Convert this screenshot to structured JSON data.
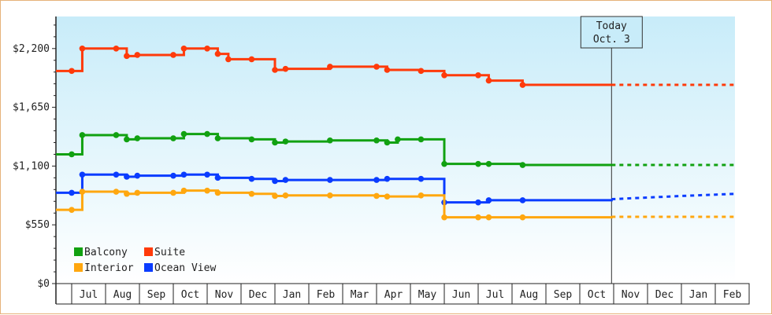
{
  "colors": {
    "suite": "#ff3a0a",
    "balcony": "#11a111",
    "ocean_view": "#0a3cff",
    "interior": "#ffa70f",
    "plot_bg_top": "#c8ecf9",
    "plot_bg_bottom": "#ffffff",
    "frame": "#e6b27a"
  },
  "today": {
    "line1": "Today",
    "line2": "Oct. 3",
    "x": "Oct 3"
  },
  "chart_data": {
    "type": "line",
    "title": "",
    "xlabel": "",
    "ylabel": "",
    "ylim": [
      0,
      2500
    ],
    "y_ticks": [
      0,
      550,
      1100,
      1650,
      2200
    ],
    "y_tick_labels": [
      "$0",
      "$550",
      "$1,100",
      "$1,650",
      "$2,200"
    ],
    "x_range": [
      "Jun",
      "Feb"
    ],
    "months": [
      "Jul",
      "Aug",
      "Sep",
      "Oct",
      "Nov",
      "Dec",
      "Jan",
      "Feb",
      "Mar",
      "Apr",
      "May",
      "Jun",
      "Jul",
      "Aug",
      "Sep",
      "Oct",
      "Nov",
      "Dec",
      "Jan",
      "Feb"
    ],
    "grid": false,
    "legend_position": "bottom-left",
    "legend": [
      {
        "key": "balcony",
        "label": "Balcony"
      },
      {
        "key": "suite",
        "label": "Suite"
      },
      {
        "key": "interior",
        "label": "Interior"
      },
      {
        "key": "ocean_view",
        "label": "Ocean View"
      }
    ],
    "series": [
      {
        "key": "suite",
        "name": "Suite",
        "step": true,
        "points": [
          [
            "Jun 0",
            1990
          ],
          [
            "Jul 0",
            1990
          ],
          [
            "Jul 1",
            2200
          ],
          [
            "Aug 1",
            2200
          ],
          [
            "Aug 2",
            2130
          ],
          [
            "Aug 3",
            2140
          ],
          [
            "Oct 0",
            2140
          ],
          [
            "Oct 1",
            2200
          ],
          [
            "Nov 0",
            2200
          ],
          [
            "Nov 1",
            2150
          ],
          [
            "Nov 2",
            2100
          ],
          [
            "Dec 1",
            2100
          ],
          [
            "Jan 0",
            2000
          ],
          [
            "Jan 1",
            2010
          ],
          [
            "Feb 2",
            2030
          ],
          [
            "Apr 0",
            2030
          ],
          [
            "Apr 1",
            2000
          ],
          [
            "May 1",
            1990
          ],
          [
            "Jun 0",
            1950
          ],
          [
            "Jul 0",
            1950
          ],
          [
            "Jul 1",
            1900
          ],
          [
            "Aug 1",
            1860
          ],
          [
            "Oct 3",
            1860
          ]
        ],
        "forecast": [
          [
            "Oct 3",
            1860
          ],
          [
            "Mar 0",
            1860
          ]
        ]
      },
      {
        "key": "balcony",
        "name": "Balcony",
        "step": true,
        "points": [
          [
            "Jun 0",
            1210
          ],
          [
            "Jul 0",
            1210
          ],
          [
            "Jul 1",
            1390
          ],
          [
            "Aug 1",
            1390
          ],
          [
            "Aug 2",
            1350
          ],
          [
            "Aug 3",
            1360
          ],
          [
            "Oct 0",
            1360
          ],
          [
            "Oct 1",
            1400
          ],
          [
            "Nov 0",
            1400
          ],
          [
            "Nov 1",
            1360
          ],
          [
            "Dec 1",
            1350
          ],
          [
            "Jan 0",
            1320
          ],
          [
            "Jan 1",
            1330
          ],
          [
            "Feb 2",
            1340
          ],
          [
            "Apr 0",
            1340
          ],
          [
            "Apr 1",
            1320
          ],
          [
            "Apr 2",
            1350
          ],
          [
            "May 1",
            1350
          ],
          [
            "Jun 0",
            1120
          ],
          [
            "Jul 0",
            1120
          ],
          [
            "Jul 1",
            1120
          ],
          [
            "Aug 1",
            1110
          ],
          [
            "Oct 3",
            1110
          ]
        ],
        "forecast": [
          [
            "Oct 3",
            1110
          ],
          [
            "Mar 0",
            1110
          ]
        ]
      },
      {
        "key": "ocean_view",
        "name": "Ocean View",
        "step": true,
        "points": [
          [
            "Jun 0",
            850
          ],
          [
            "Jul 0",
            850
          ],
          [
            "Jul 1",
            1020
          ],
          [
            "Aug 1",
            1020
          ],
          [
            "Aug 2",
            1000
          ],
          [
            "Aug 3",
            1010
          ],
          [
            "Oct 0",
            1010
          ],
          [
            "Oct 1",
            1020
          ],
          [
            "Nov 0",
            1020
          ],
          [
            "Nov 1",
            990
          ],
          [
            "Dec 1",
            980
          ],
          [
            "Jan 0",
            960
          ],
          [
            "Jan 1",
            970
          ],
          [
            "Feb 2",
            970
          ],
          [
            "Apr 0",
            970
          ],
          [
            "Apr 1",
            980
          ],
          [
            "May 1",
            980
          ],
          [
            "Jun 0",
            760
          ],
          [
            "Jul 0",
            760
          ],
          [
            "Jul 1",
            780
          ],
          [
            "Aug 1",
            780
          ],
          [
            "Oct 3",
            790
          ]
        ],
        "forecast": [
          [
            "Oct 3",
            790
          ],
          [
            "Jan 0",
            820
          ],
          [
            "Mar 0",
            840
          ]
        ]
      },
      {
        "key": "interior",
        "name": "Interior",
        "step": true,
        "points": [
          [
            "Jun 0",
            690
          ],
          [
            "Jul 0",
            690
          ],
          [
            "Jul 1",
            860
          ],
          [
            "Aug 1",
            860
          ],
          [
            "Aug 2",
            840
          ],
          [
            "Aug 3",
            850
          ],
          [
            "Oct 0",
            850
          ],
          [
            "Oct 1",
            870
          ],
          [
            "Nov 0",
            870
          ],
          [
            "Nov 1",
            850
          ],
          [
            "Dec 1",
            840
          ],
          [
            "Jan 0",
            820
          ],
          [
            "Jan 1",
            825
          ],
          [
            "Feb 2",
            825
          ],
          [
            "Apr 0",
            820
          ],
          [
            "Apr 1",
            815
          ],
          [
            "May 1",
            825
          ],
          [
            "Jun 0",
            620
          ],
          [
            "Jul 0",
            620
          ],
          [
            "Jul 1",
            620
          ],
          [
            "Aug 1",
            620
          ],
          [
            "Oct 3",
            625
          ]
        ],
        "forecast": [
          [
            "Oct 3",
            625
          ],
          [
            "Mar 0",
            625
          ]
        ]
      }
    ]
  }
}
